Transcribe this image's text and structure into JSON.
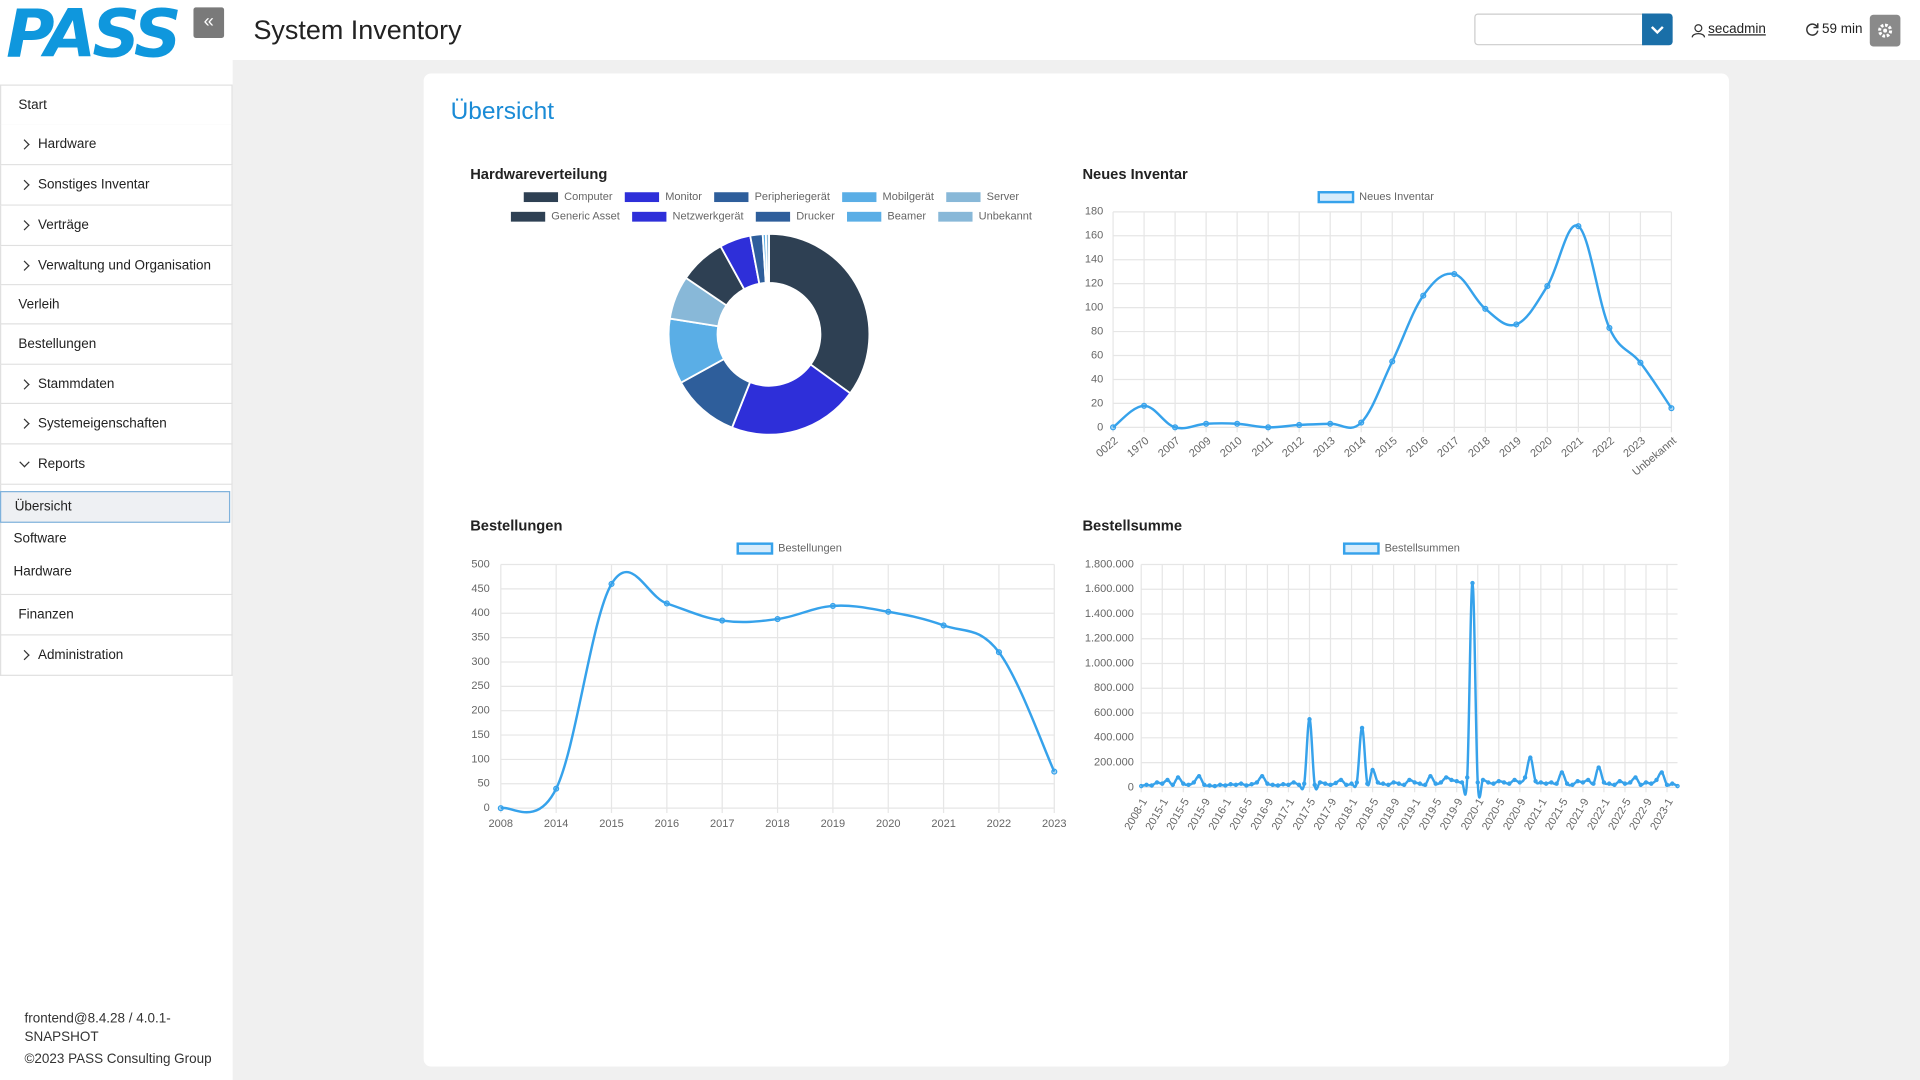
{
  "header": {
    "logo": "PASS",
    "title": "System Inventory",
    "user": "secadmin",
    "session": "59 min"
  },
  "nav": [
    "Start",
    "Hardware",
    "Sonstiges Inventar",
    "Verträge",
    "Verwaltung und Organisation",
    "Verleih",
    "Bestellungen",
    "Stammdaten",
    "Systemeigenschaften",
    "Reports",
    "Finanzen",
    "Administration"
  ],
  "reports_menu": [
    "Übersicht",
    "Software",
    "Hardware"
  ],
  "footer": {
    "version": "frontend@8.4.28 / 4.0.1-SNAPSHOT",
    "copyright": "©2023 PASS Consulting Group"
  },
  "page_title": "Übersicht",
  "chart_data": [
    {
      "type": "pie",
      "title": "Hardwareverteilung",
      "donut": true,
      "categories": [
        "Computer",
        "Monitor",
        "Peripheriegerät",
        "Mobilgerät",
        "Server",
        "Generic Asset",
        "Netzwerkgerät",
        "Drucker",
        "Beamer",
        "Unbekannt"
      ],
      "values": [
        35,
        21,
        11,
        10.5,
        7,
        7.5,
        5,
        2,
        0.5,
        0.5
      ],
      "colors": [
        "#2e4053",
        "#2e2fd9",
        "#2e5e9b",
        "#5aaee6",
        "#88b8d8",
        "#2e4053",
        "#2e2fd9",
        "#2e5e9b",
        "#5aaee6",
        "#88b8d8"
      ]
    },
    {
      "type": "line",
      "title": "Neues Inventar",
      "grid": true,
      "categories": [
        "0022",
        "1970",
        "2007",
        "2009",
        "2010",
        "2011",
        "2012",
        "2013",
        "2014",
        "2015",
        "2016",
        "2017",
        "2018",
        "2019",
        "2020",
        "2021",
        "2022",
        "2023",
        "Unbekannt"
      ],
      "series": [
        {
          "name": "Neues Inventar",
          "color": "#36a2eb",
          "values": [
            0,
            18,
            0,
            3,
            3,
            0,
            2,
            3,
            4,
            55,
            110,
            128,
            99,
            86,
            118,
            168,
            83,
            54,
            16
          ]
        }
      ],
      "ylim": [
        0,
        180
      ],
      "yticks": [
        0,
        20,
        40,
        60,
        80,
        100,
        120,
        140,
        160,
        180
      ]
    },
    {
      "type": "line",
      "title": "Bestellungen",
      "grid": true,
      "categories": [
        "2008",
        "2014",
        "2015",
        "2016",
        "2017",
        "2018",
        "2019",
        "2020",
        "2021",
        "2022",
        "2023"
      ],
      "series": [
        {
          "name": "Bestellungen",
          "color": "#36a2eb",
          "values": [
            0,
            40,
            460,
            420,
            385,
            388,
            415,
            403,
            375,
            320,
            75
          ]
        }
      ],
      "ylim": [
        0,
        500
      ],
      "yticks": [
        0,
        50,
        100,
        150,
        200,
        250,
        300,
        350,
        400,
        450,
        500
      ]
    },
    {
      "type": "line",
      "title": "Bestellsumme",
      "grid": true,
      "categories": [
        "2008-1",
        null,
        null,
        null,
        "2015-1",
        null,
        null,
        null,
        "2015-5",
        null,
        null,
        null,
        "2015-9",
        null,
        null,
        null,
        "2016-1",
        null,
        null,
        null,
        "2016-5",
        null,
        null,
        null,
        "2016-9",
        null,
        null,
        null,
        "2017-1",
        null,
        null,
        null,
        "2017-5",
        null,
        null,
        null,
        "2017-9",
        null,
        null,
        null,
        "2018-1",
        null,
        null,
        null,
        "2018-5",
        null,
        null,
        null,
        "2018-9",
        null,
        null,
        null,
        "2019-1",
        null,
        null,
        null,
        "2019-5",
        null,
        null,
        null,
        "2019-9",
        null,
        null,
        null,
        "2020-1",
        null,
        null,
        null,
        "2020-5",
        null,
        null,
        null,
        "2020-9",
        null,
        null,
        null,
        "2021-1",
        null,
        null,
        null,
        "2021-5",
        null,
        null,
        null,
        "2021-9",
        null,
        null,
        null,
        "2022-1",
        null,
        null,
        null,
        "2022-5",
        null,
        null,
        null,
        "2022-9",
        null,
        null,
        null,
        "2023-1",
        null,
        null
      ],
      "series": [
        {
          "name": "Bestellsummen",
          "color": "#36a2eb",
          "values": [
            10000,
            20000,
            15000,
            40000,
            30000,
            60000,
            20000,
            80000,
            30000,
            20000,
            40000,
            90000,
            20000,
            15000,
            10000,
            20000,
            15000,
            25000,
            20000,
            30000,
            15000,
            25000,
            40000,
            90000,
            30000,
            20000,
            15000,
            25000,
            20000,
            40000,
            20000,
            30000,
            550000,
            20000,
            40000,
            30000,
            20000,
            35000,
            60000,
            20000,
            30000,
            40000,
            480000,
            30000,
            140000,
            40000,
            30000,
            20000,
            40000,
            30000,
            20000,
            60000,
            40000,
            30000,
            20000,
            90000,
            30000,
            40000,
            80000,
            60000,
            50000,
            40000,
            80000,
            1650000,
            40000,
            60000,
            40000,
            30000,
            50000,
            40000,
            30000,
            60000,
            40000,
            80000,
            240000,
            50000,
            40000,
            30000,
            40000,
            30000,
            120000,
            30000,
            20000,
            50000,
            40000,
            60000,
            30000,
            160000,
            40000,
            30000,
            20000,
            50000,
            30000,
            40000,
            80000,
            20000,
            40000,
            30000,
            60000,
            120000,
            20000,
            30000,
            10000
          ]
        }
      ],
      "ylim": [
        0,
        1800000
      ],
      "yticks": [
        0,
        {
          "value": 200000,
          "label": "200.000"
        },
        {
          "value": 400000,
          "label": "400.000"
        },
        {
          "value": 600000,
          "label": "600.000"
        },
        {
          "value": 800000,
          "label": "800.000"
        },
        {
          "value": 1000000,
          "label": "1.000.000"
        },
        {
          "value": 1200000,
          "label": "1.200.000"
        },
        {
          "value": 1400000,
          "label": "1.400.000"
        },
        {
          "value": 1600000,
          "label": "1.600.000"
        },
        {
          "value": 1800000,
          "label": "1.800.000"
        }
      ]
    }
  ]
}
